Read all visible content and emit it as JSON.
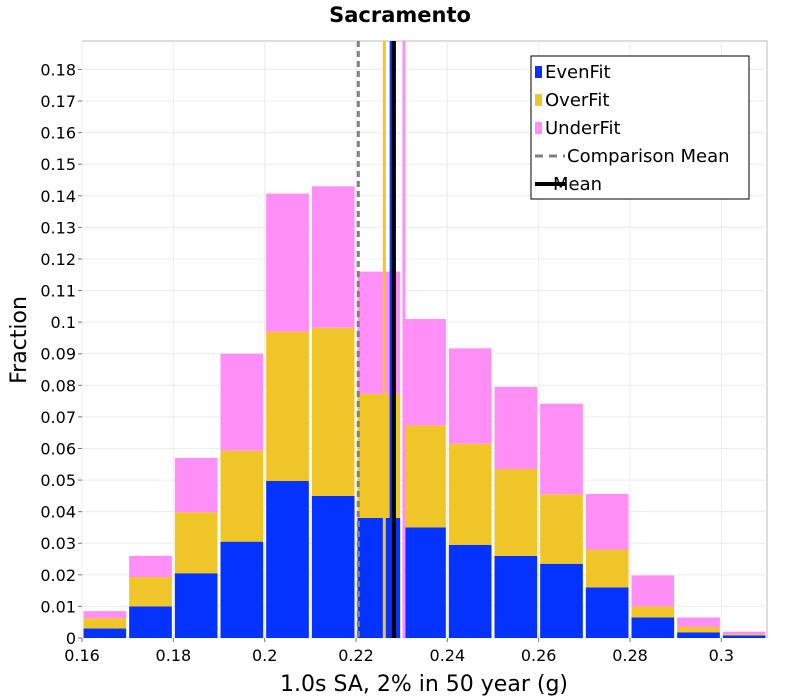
{
  "chart_data": {
    "type": "bar",
    "title": "Sacramento",
    "xlabel": "1.0s SA, 2% in 50 year (g)",
    "ylabel": "Fraction",
    "xlim": [
      0.16,
      0.31
    ],
    "ylim": [
      0,
      0.189
    ],
    "bin_width": 0.01,
    "x_ticks": [
      0.16,
      0.18,
      0.2,
      0.22,
      0.24,
      0.26,
      0.28,
      0.3
    ],
    "x_tick_labels": [
      "0.16",
      "0.18",
      "0.2",
      "0.22",
      "0.24",
      "0.26",
      "0.28",
      "0.3"
    ],
    "y_ticks": [
      0,
      0.01,
      0.02,
      0.03,
      0.04,
      0.05,
      0.06,
      0.07,
      0.08,
      0.09,
      0.1,
      0.11,
      0.12,
      0.13,
      0.14,
      0.15,
      0.16,
      0.17,
      0.18
    ],
    "y_tick_labels": [
      "0",
      "0.01",
      "0.02",
      "0.03",
      "0.04",
      "0.05",
      "0.06",
      "0.07",
      "0.08",
      "0.09",
      "0.1",
      "0.11",
      "0.12",
      "0.13",
      "0.14",
      "0.15",
      "0.16",
      "0.17",
      "0.18"
    ],
    "bins": [
      0.165,
      0.175,
      0.185,
      0.195,
      0.205,
      0.215,
      0.225,
      0.235,
      0.245,
      0.255,
      0.265,
      0.275,
      0.285,
      0.295,
      0.305
    ],
    "series": [
      {
        "name": "EvenFit",
        "color": "#0433ff",
        "values": [
          0.003,
          0.01,
          0.0205,
          0.0305,
          0.0497,
          0.045,
          0.038,
          0.035,
          0.0295,
          0.026,
          0.0235,
          0.016,
          0.0065,
          0.0018,
          0.0008
        ]
      },
      {
        "name": "OverFit",
        "color": "#f0c528",
        "values": [
          0.0033,
          0.0093,
          0.0193,
          0.0288,
          0.0473,
          0.0532,
          0.0393,
          0.0323,
          0.032,
          0.0275,
          0.022,
          0.012,
          0.0035,
          0.0017,
          0.0004
        ]
      },
      {
        "name": "UnderFit",
        "color": "#ff8ef7",
        "values": [
          0.0022,
          0.0067,
          0.0172,
          0.0307,
          0.0437,
          0.0448,
          0.0387,
          0.0337,
          0.0302,
          0.026,
          0.0287,
          0.0176,
          0.0098,
          0.003,
          0.0008
        ]
      }
    ],
    "vertical_lines": [
      {
        "name": "Comparison Mean",
        "x": 0.2205,
        "color": "#808080",
        "style": "dashed"
      },
      {
        "name": "OverFit Mean",
        "x": 0.2262,
        "color": "#f0c528",
        "style": "solid"
      },
      {
        "name": "EvenFit Mean",
        "x": 0.2277,
        "color": "#0433ff",
        "style": "solid"
      },
      {
        "name": "UnderFit Mean",
        "x": 0.2305,
        "color": "#ff8ef7",
        "style": "solid"
      },
      {
        "name": "Mean",
        "x": 0.2283,
        "color": "#000000",
        "style": "solid"
      }
    ],
    "legend": {
      "placement": "top-right",
      "entries": [
        {
          "label": "EvenFit",
          "kind": "box",
          "color": "#0433ff"
        },
        {
          "label": "OverFit",
          "kind": "box",
          "color": "#f0c528"
        },
        {
          "label": "UnderFit",
          "kind": "box",
          "color": "#ff8ef7"
        },
        {
          "label": "Comparison Mean",
          "kind": "dashed-line",
          "color": "#808080"
        },
        {
          "label": "Mean",
          "kind": "line",
          "color": "#000000"
        }
      ]
    }
  }
}
